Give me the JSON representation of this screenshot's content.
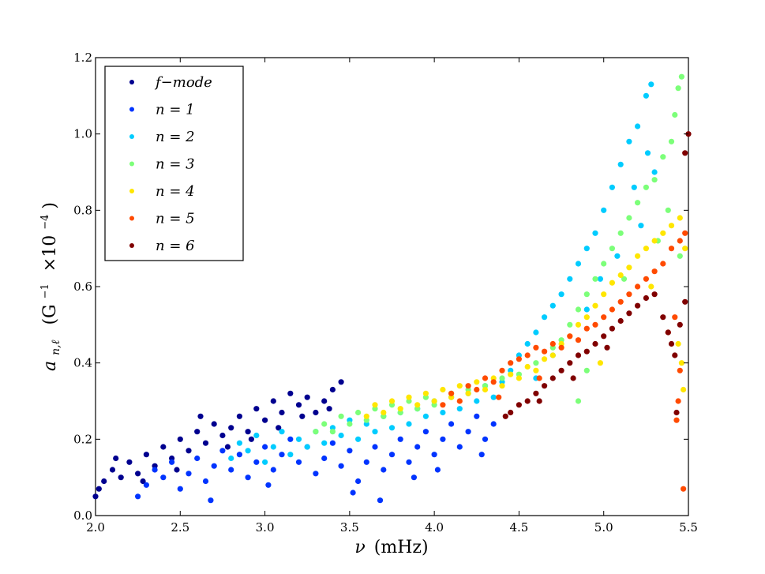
{
  "chart_data": {
    "type": "scatter",
    "xlabel_symbol": "ν",
    "xlabel_unit": "(mHz)",
    "ylabel_symbol": "a",
    "ylabel_subscript": "n,ℓ",
    "ylabel_unit_open": "(G",
    "ylabel_unit_exp1": "−1",
    "ylabel_unit_mid": "×10",
    "ylabel_unit_exp2": "−4",
    "ylabel_unit_close": ")",
    "xlim": [
      2.0,
      5.5
    ],
    "ylim": [
      0.0,
      1.2
    ],
    "xticks": [
      "2.0",
      "2.5",
      "3.0",
      "3.5",
      "4.0",
      "4.5",
      "5.0",
      "5.5"
    ],
    "yticks": [
      "0.0",
      "0.2",
      "0.4",
      "0.6",
      "0.8",
      "1.0",
      "1.2"
    ],
    "grid": false,
    "legend_position": "top-left",
    "series": [
      {
        "name": "f−mode",
        "color": "#00008f",
        "points": [
          [
            2.0,
            0.05
          ],
          [
            2.05,
            0.09
          ],
          [
            2.1,
            0.12
          ],
          [
            2.15,
            0.1
          ],
          [
            2.2,
            0.14
          ],
          [
            2.25,
            0.11
          ],
          [
            2.3,
            0.16
          ],
          [
            2.35,
            0.13
          ],
          [
            2.4,
            0.18
          ],
          [
            2.45,
            0.15
          ],
          [
            2.5,
            0.2
          ],
          [
            2.55,
            0.17
          ],
          [
            2.6,
            0.22
          ],
          [
            2.65,
            0.19
          ],
          [
            2.7,
            0.24
          ],
          [
            2.75,
            0.21
          ],
          [
            2.8,
            0.23
          ],
          [
            2.85,
            0.26
          ],
          [
            2.9,
            0.22
          ],
          [
            2.95,
            0.28
          ],
          [
            3.0,
            0.25
          ],
          [
            3.05,
            0.3
          ],
          [
            3.1,
            0.27
          ],
          [
            3.15,
            0.32
          ],
          [
            3.2,
            0.29
          ],
          [
            3.25,
            0.31
          ],
          [
            3.3,
            0.27
          ],
          [
            3.35,
            0.3
          ],
          [
            3.4,
            0.33
          ],
          [
            3.45,
            0.35
          ],
          [
            2.02,
            0.07
          ],
          [
            2.12,
            0.15
          ],
          [
            2.28,
            0.09
          ],
          [
            2.48,
            0.12
          ],
          [
            2.62,
            0.26
          ],
          [
            2.78,
            0.18
          ],
          [
            2.92,
            0.2
          ],
          [
            3.08,
            0.23
          ],
          [
            3.22,
            0.26
          ],
          [
            3.38,
            0.28
          ]
        ]
      },
      {
        "name": "n = 1",
        "color": "#0034ff",
        "points": [
          [
            2.25,
            0.05
          ],
          [
            2.3,
            0.08
          ],
          [
            2.35,
            0.12
          ],
          [
            2.4,
            0.1
          ],
          [
            2.45,
            0.14
          ],
          [
            2.5,
            0.07
          ],
          [
            2.55,
            0.11
          ],
          [
            2.6,
            0.15
          ],
          [
            2.65,
            0.09
          ],
          [
            2.7,
            0.13
          ],
          [
            2.75,
            0.17
          ],
          [
            2.8,
            0.12
          ],
          [
            2.85,
            0.16
          ],
          [
            2.9,
            0.1
          ],
          [
            2.95,
            0.14
          ],
          [
            3.0,
            0.18
          ],
          [
            3.05,
            0.12
          ],
          [
            3.1,
            0.16
          ],
          [
            3.15,
            0.2
          ],
          [
            3.2,
            0.14
          ],
          [
            3.25,
            0.18
          ],
          [
            3.3,
            0.11
          ],
          [
            3.35,
            0.15
          ],
          [
            3.4,
            0.19
          ],
          [
            3.45,
            0.13
          ],
          [
            3.5,
            0.17
          ],
          [
            3.55,
            0.09
          ],
          [
            3.6,
            0.14
          ],
          [
            3.65,
            0.18
          ],
          [
            3.7,
            0.12
          ],
          [
            3.75,
            0.16
          ],
          [
            3.8,
            0.2
          ],
          [
            3.85,
            0.14
          ],
          [
            3.9,
            0.18
          ],
          [
            3.95,
            0.22
          ],
          [
            4.0,
            0.16
          ],
          [
            4.05,
            0.2
          ],
          [
            4.1,
            0.24
          ],
          [
            4.15,
            0.18
          ],
          [
            4.2,
            0.22
          ],
          [
            4.25,
            0.26
          ],
          [
            4.3,
            0.2
          ],
          [
            4.35,
            0.24
          ],
          [
            2.68,
            0.04
          ],
          [
            3.52,
            0.06
          ],
          [
            3.68,
            0.04
          ],
          [
            3.02,
            0.08
          ],
          [
            3.88,
            0.1
          ],
          [
            4.02,
            0.12
          ],
          [
            4.28,
            0.16
          ]
        ]
      },
      {
        "name": "n = 2",
        "color": "#00ccff",
        "points": [
          [
            2.8,
            0.15
          ],
          [
            2.85,
            0.19
          ],
          [
            2.9,
            0.17
          ],
          [
            2.95,
            0.21
          ],
          [
            3.0,
            0.14
          ],
          [
            3.05,
            0.18
          ],
          [
            3.1,
            0.22
          ],
          [
            3.15,
            0.16
          ],
          [
            3.2,
            0.2
          ],
          [
            3.25,
            0.18
          ],
          [
            3.3,
            0.22
          ],
          [
            3.35,
            0.19
          ],
          [
            3.4,
            0.23
          ],
          [
            3.45,
            0.21
          ],
          [
            3.5,
            0.25
          ],
          [
            3.55,
            0.2
          ],
          [
            3.6,
            0.24
          ],
          [
            3.65,
            0.22
          ],
          [
            3.7,
            0.26
          ],
          [
            3.75,
            0.23
          ],
          [
            3.8,
            0.27
          ],
          [
            3.85,
            0.24
          ],
          [
            3.9,
            0.28
          ],
          [
            3.95,
            0.26
          ],
          [
            4.0,
            0.3
          ],
          [
            4.05,
            0.27
          ],
          [
            4.1,
            0.31
          ],
          [
            4.15,
            0.28
          ],
          [
            4.2,
            0.32
          ],
          [
            4.25,
            0.3
          ],
          [
            4.3,
            0.34
          ],
          [
            4.35,
            0.31
          ],
          [
            4.4,
            0.35
          ],
          [
            4.45,
            0.38
          ],
          [
            4.5,
            0.42
          ],
          [
            4.55,
            0.45
          ],
          [
            4.6,
            0.48
          ],
          [
            4.65,
            0.52
          ],
          [
            4.7,
            0.55
          ],
          [
            4.75,
            0.58
          ],
          [
            4.8,
            0.62
          ],
          [
            4.85,
            0.66
          ],
          [
            4.9,
            0.7
          ],
          [
            4.95,
            0.74
          ],
          [
            5.0,
            0.8
          ],
          [
            5.05,
            0.86
          ],
          [
            5.1,
            0.92
          ],
          [
            5.15,
            0.98
          ],
          [
            5.2,
            1.02
          ],
          [
            5.25,
            1.1
          ],
          [
            5.28,
            1.13
          ],
          [
            5.3,
            0.9
          ],
          [
            5.22,
            0.76
          ],
          [
            5.08,
            0.68
          ],
          [
            4.98,
            0.62
          ],
          [
            4.6,
            0.36
          ],
          [
            4.7,
            0.42
          ],
          [
            4.9,
            0.54
          ],
          [
            5.18,
            0.86
          ],
          [
            5.26,
            0.95
          ]
        ]
      },
      {
        "name": "n = 3",
        "color": "#7cff79",
        "points": [
          [
            3.3,
            0.22
          ],
          [
            3.35,
            0.24
          ],
          [
            3.4,
            0.22
          ],
          [
            3.45,
            0.26
          ],
          [
            3.5,
            0.24
          ],
          [
            3.55,
            0.27
          ],
          [
            3.6,
            0.25
          ],
          [
            3.65,
            0.28
          ],
          [
            3.7,
            0.26
          ],
          [
            3.75,
            0.29
          ],
          [
            3.8,
            0.27
          ],
          [
            3.85,
            0.3
          ],
          [
            3.9,
            0.28
          ],
          [
            3.95,
            0.31
          ],
          [
            4.0,
            0.29
          ],
          [
            4.1,
            0.32
          ],
          [
            4.2,
            0.33
          ],
          [
            4.3,
            0.34
          ],
          [
            4.4,
            0.36
          ],
          [
            4.5,
            0.37
          ],
          [
            4.6,
            0.4
          ],
          [
            4.7,
            0.44
          ],
          [
            4.75,
            0.46
          ],
          [
            4.8,
            0.5
          ],
          [
            4.85,
            0.54
          ],
          [
            4.9,
            0.58
          ],
          [
            4.95,
            0.62
          ],
          [
            5.0,
            0.66
          ],
          [
            5.05,
            0.7
          ],
          [
            5.1,
            0.74
          ],
          [
            5.15,
            0.78
          ],
          [
            5.2,
            0.82
          ],
          [
            5.25,
            0.86
          ],
          [
            5.3,
            0.88
          ],
          [
            5.35,
            0.94
          ],
          [
            5.4,
            0.98
          ],
          [
            5.42,
            1.05
          ],
          [
            5.44,
            1.12
          ],
          [
            5.46,
            1.15
          ],
          [
            5.38,
            0.8
          ],
          [
            5.32,
            0.72
          ],
          [
            4.85,
            0.3
          ],
          [
            4.9,
            0.38
          ],
          [
            5.12,
            0.62
          ],
          [
            5.45,
            0.68
          ]
        ]
      },
      {
        "name": "n = 4",
        "color": "#ffe600",
        "points": [
          [
            3.6,
            0.26
          ],
          [
            3.65,
            0.29
          ],
          [
            3.7,
            0.27
          ],
          [
            3.75,
            0.3
          ],
          [
            3.8,
            0.28
          ],
          [
            3.85,
            0.31
          ],
          [
            3.9,
            0.29
          ],
          [
            3.95,
            0.32
          ],
          [
            4.0,
            0.3
          ],
          [
            4.05,
            0.33
          ],
          [
            4.1,
            0.31
          ],
          [
            4.15,
            0.34
          ],
          [
            4.2,
            0.32
          ],
          [
            4.25,
            0.35
          ],
          [
            4.3,
            0.33
          ],
          [
            4.35,
            0.36
          ],
          [
            4.4,
            0.34
          ],
          [
            4.45,
            0.37
          ],
          [
            4.5,
            0.36
          ],
          [
            4.55,
            0.39
          ],
          [
            4.6,
            0.38
          ],
          [
            4.65,
            0.41
          ],
          [
            4.7,
            0.42
          ],
          [
            4.75,
            0.45
          ],
          [
            4.8,
            0.47
          ],
          [
            4.85,
            0.5
          ],
          [
            4.9,
            0.52
          ],
          [
            4.95,
            0.55
          ],
          [
            5.0,
            0.58
          ],
          [
            5.05,
            0.61
          ],
          [
            5.1,
            0.63
          ],
          [
            5.15,
            0.65
          ],
          [
            5.2,
            0.68
          ],
          [
            5.25,
            0.7
          ],
          [
            5.3,
            0.72
          ],
          [
            5.35,
            0.74
          ],
          [
            5.4,
            0.76
          ],
          [
            5.45,
            0.78
          ],
          [
            5.48,
            0.7
          ],
          [
            5.46,
            0.4
          ],
          [
            5.47,
            0.33
          ],
          [
            5.44,
            0.45
          ],
          [
            4.98,
            0.4
          ],
          [
            5.28,
            0.6
          ]
        ]
      },
      {
        "name": "n = 5",
        "color": "#ff4a00",
        "points": [
          [
            4.05,
            0.29
          ],
          [
            4.1,
            0.32
          ],
          [
            4.15,
            0.3
          ],
          [
            4.2,
            0.34
          ],
          [
            4.25,
            0.33
          ],
          [
            4.3,
            0.36
          ],
          [
            4.35,
            0.35
          ],
          [
            4.4,
            0.38
          ],
          [
            4.45,
            0.4
          ],
          [
            4.5,
            0.41
          ],
          [
            4.55,
            0.42
          ],
          [
            4.6,
            0.44
          ],
          [
            4.65,
            0.43
          ],
          [
            4.7,
            0.45
          ],
          [
            4.75,
            0.44
          ],
          [
            4.8,
            0.47
          ],
          [
            4.85,
            0.46
          ],
          [
            4.9,
            0.49
          ],
          [
            4.95,
            0.5
          ],
          [
            5.0,
            0.52
          ],
          [
            5.05,
            0.54
          ],
          [
            5.1,
            0.56
          ],
          [
            5.15,
            0.58
          ],
          [
            5.2,
            0.6
          ],
          [
            5.25,
            0.62
          ],
          [
            5.3,
            0.64
          ],
          [
            5.35,
            0.66
          ],
          [
            5.4,
            0.7
          ],
          [
            5.45,
            0.72
          ],
          [
            5.48,
            0.74
          ],
          [
            5.42,
            0.52
          ],
          [
            5.38,
            0.48
          ],
          [
            5.44,
            0.3
          ],
          [
            5.43,
            0.25
          ],
          [
            5.47,
            0.07
          ],
          [
            5.45,
            0.38
          ],
          [
            4.38,
            0.31
          ],
          [
            4.62,
            0.36
          ]
        ]
      },
      {
        "name": "n = 6",
        "color": "#800000",
        "points": [
          [
            4.42,
            0.26
          ],
          [
            4.45,
            0.27
          ],
          [
            4.5,
            0.29
          ],
          [
            4.55,
            0.3
          ],
          [
            4.6,
            0.32
          ],
          [
            4.65,
            0.34
          ],
          [
            4.7,
            0.36
          ],
          [
            4.75,
            0.38
          ],
          [
            4.8,
            0.4
          ],
          [
            4.85,
            0.42
          ],
          [
            4.9,
            0.43
          ],
          [
            4.95,
            0.45
          ],
          [
            5.0,
            0.47
          ],
          [
            5.05,
            0.49
          ],
          [
            5.1,
            0.51
          ],
          [
            5.15,
            0.53
          ],
          [
            5.2,
            0.55
          ],
          [
            5.25,
            0.57
          ],
          [
            5.3,
            0.58
          ],
          [
            5.35,
            0.52
          ],
          [
            5.38,
            0.48
          ],
          [
            5.4,
            0.45
          ],
          [
            5.42,
            0.42
          ],
          [
            5.45,
            0.5
          ],
          [
            5.48,
            0.56
          ],
          [
            5.5,
            1.0
          ],
          [
            5.48,
            0.95
          ],
          [
            5.43,
            0.27
          ],
          [
            4.62,
            0.3
          ],
          [
            4.82,
            0.36
          ],
          [
            5.02,
            0.44
          ]
        ]
      }
    ]
  }
}
